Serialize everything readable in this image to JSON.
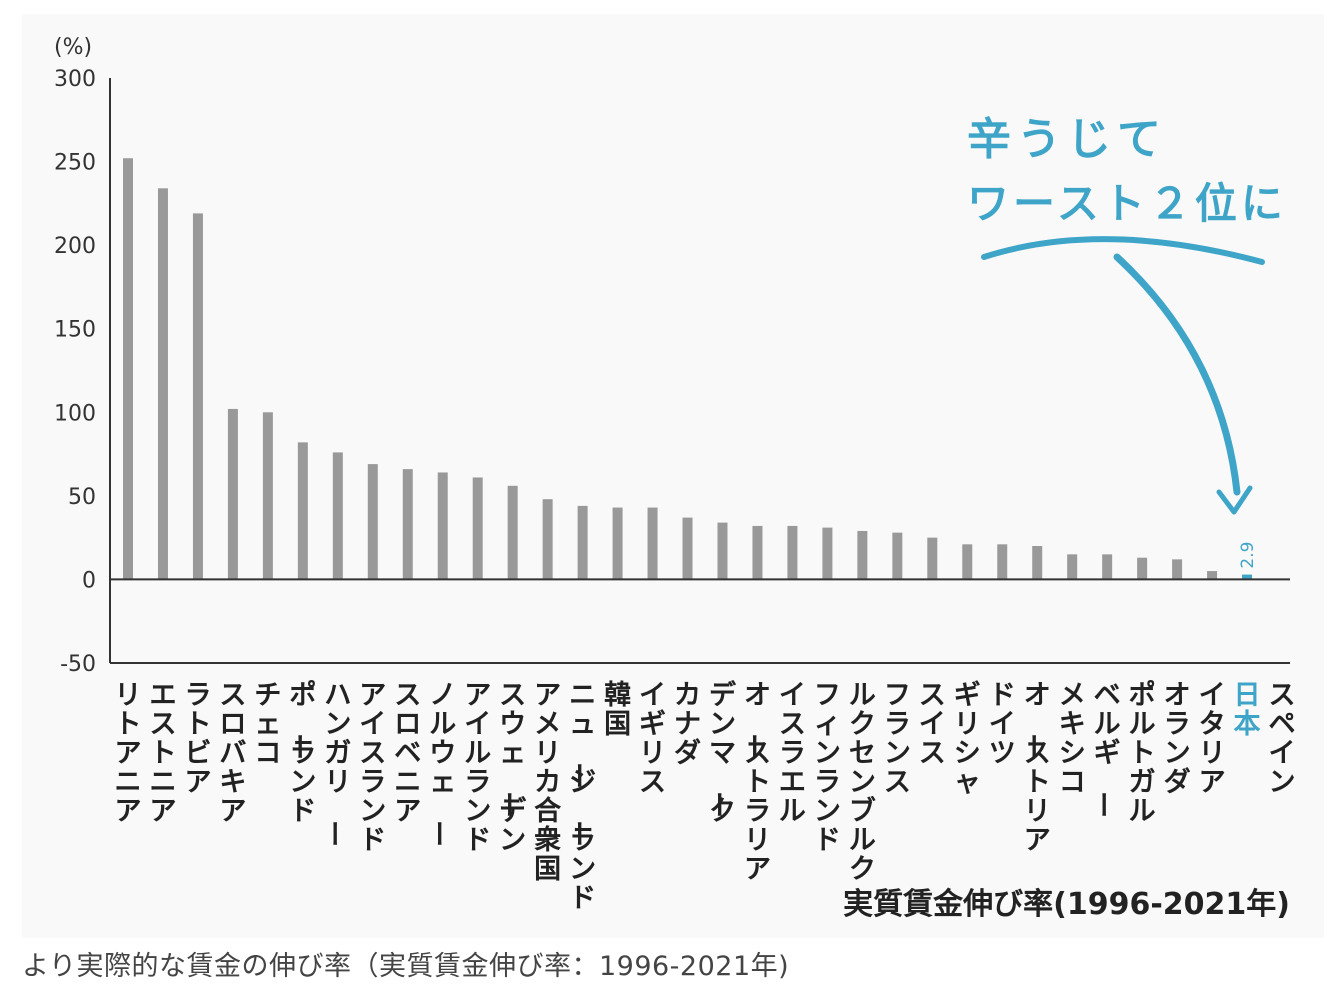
{
  "chart_data": {
    "type": "bar",
    "y_unit_label": "(%)",
    "xlabel": "実質賃金伸び率(1996-2021年)",
    "ylim": [
      -50,
      300
    ],
    "yticks": [
      300,
      250,
      200,
      150,
      100,
      50,
      0,
      -50
    ],
    "categories": [
      "リトアニア",
      "エストニア",
      "ラトビア",
      "スロバキア",
      "チェコ",
      "ポーランド",
      "ハンガリー",
      "アイスランド",
      "スロベニア",
      "ノルウェー",
      "アイルランド",
      "スウェーデン",
      "アメリカ合衆国",
      "ニュージーランド",
      "韓国",
      "イギリス",
      "カナダ",
      "デンマーク",
      "オーストラリア",
      "イスラエル",
      "フィンランド",
      "ルクセンブルク",
      "フランス",
      "スイス",
      "ギリシャ",
      "ドイツ",
      "オーストリア",
      "メキシコ",
      "ベルギー",
      "ポルトガル",
      "オランダ",
      "イタリア",
      "日本",
      "スペイン"
    ],
    "values": [
      252,
      234,
      219,
      102,
      100,
      82,
      76,
      69,
      66,
      64,
      61,
      56,
      48,
      44,
      43,
      43,
      37,
      34,
      32,
      32,
      31,
      29,
      28,
      25,
      21,
      21,
      20,
      15,
      15,
      13,
      12,
      5,
      2.9,
      0
    ],
    "highlight": {
      "category": "日本",
      "value_label": "2.9",
      "color": "#3fa5c8"
    },
    "annotation": {
      "line1": "辛うじて",
      "line2": "ワースト２位に",
      "color": "#3fa5c8"
    },
    "bar_color": "#999999",
    "axis_color": "#333333",
    "grid": false
  },
  "caption": "より実際的な賃金の伸び率（実質賃金伸び率：1996-2021年)"
}
